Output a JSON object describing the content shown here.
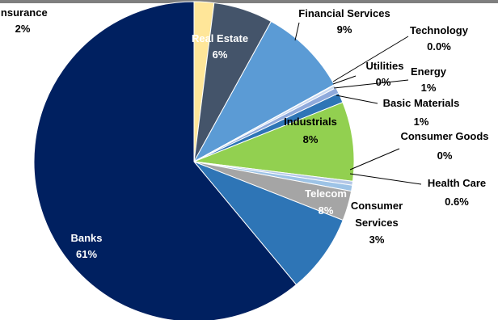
{
  "chart_data": {
    "type": "pie",
    "title": "",
    "slices": [
      {
        "label": "Insurance",
        "value": 2,
        "value_label": "2%",
        "color": "#ffe699"
      },
      {
        "label": "Real Estate",
        "value": 6,
        "value_label": "6%",
        "color": "#44546a"
      },
      {
        "label": "Financial Services",
        "value": 9,
        "value_label": "9%",
        "color": "#5b9bd5"
      },
      {
        "label": "Technology",
        "value": 0.05,
        "value_label": "0.0%",
        "color": "#d9e1f2"
      },
      {
        "label": "Utilities",
        "value": 0.3,
        "value_label": "0%",
        "color": "#c9d9f0"
      },
      {
        "label": "Energy",
        "value": 0.6,
        "value_label": "1%",
        "color": "#8faadc"
      },
      {
        "label": "Basic Materials",
        "value": 1,
        "value_label": "1%",
        "color": "#2e75b6"
      },
      {
        "label": "Industrials",
        "value": 8,
        "value_label": "8%",
        "color": "#92d050"
      },
      {
        "label": "Consumer Goods",
        "value": 0.4,
        "value_label": "0%",
        "color": "#b4c7e7"
      },
      {
        "label": "Health Care",
        "value": 0.6,
        "value_label": "0.6%",
        "color": "#9dc3e6"
      },
      {
        "label": "Consumer Services",
        "value": 3,
        "value_label": "3%",
        "color": "#a5a5a5"
      },
      {
        "label": "Telecom",
        "value": 8,
        "value_label": "8%",
        "color": "#2e75b6"
      },
      {
        "label": "Banks",
        "value": 61,
        "value_label": "61%",
        "color": "#002060"
      }
    ],
    "legend": "none",
    "label_style": "category name and percentage, bold"
  },
  "colors": {
    "top_bar": "#7f7f7f",
    "label_dark": "#000000",
    "label_light": "#ffffff",
    "leader_line": "#000000"
  }
}
